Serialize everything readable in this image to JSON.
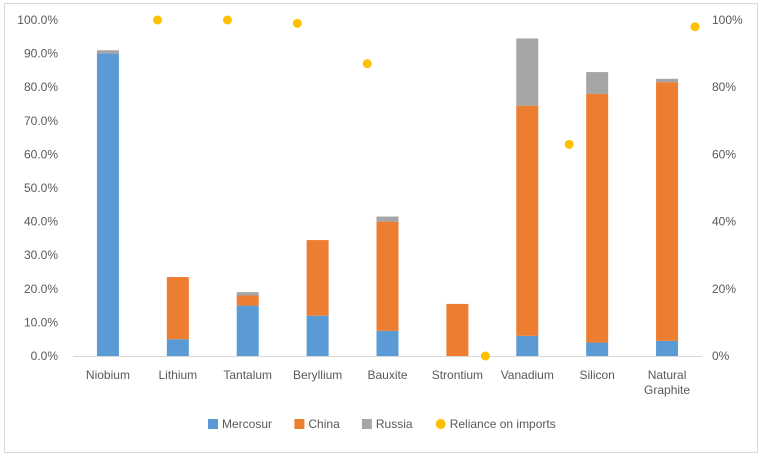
{
  "chart_data": {
    "type": "bar",
    "stacked": true,
    "categories": [
      "Niobium",
      "Lithium",
      "Tantalum",
      "Beryllium",
      "Bauxite",
      "Strontium",
      "Vanadium",
      "Silicon",
      "Natural Graphite"
    ],
    "series": [
      {
        "name": "Mercosur",
        "type": "bar",
        "axis": "left",
        "color": "#5b9bd5",
        "values": [
          0.9,
          0.05,
          0.15,
          0.12,
          0.075,
          0.0,
          0.06,
          0.04,
          0.045
        ]
      },
      {
        "name": "China",
        "type": "bar",
        "axis": "left",
        "color": "#ed7d31",
        "values": [
          0.0,
          0.185,
          0.03,
          0.225,
          0.325,
          0.155,
          0.685,
          0.74,
          0.77
        ]
      },
      {
        "name": "Russia",
        "type": "bar",
        "axis": "left",
        "color": "#a5a5a5",
        "values": [
          0.01,
          0.0,
          0.01,
          0.0,
          0.015,
          0.0,
          0.2,
          0.065,
          0.01
        ]
      },
      {
        "name": "Reliance on imports",
        "type": "scatter",
        "axis": "right",
        "color": "#ffc000",
        "values": [
          1.0,
          1.0,
          0.99,
          0.87,
          null,
          0.0,
          null,
          0.63,
          0.98
        ],
        "positions": [
          0.71,
          0.71,
          0.71,
          0.71,
          0.4,
          0.4,
          0.4,
          -0.4,
          0.4
        ]
      }
    ],
    "y_left": {
      "min": 0,
      "max": 1.0,
      "step": 0.1,
      "tick_labels": [
        "0.0%",
        "10.0%",
        "20.0%",
        "30.0%",
        "40.0%",
        "50.0%",
        "60.0%",
        "70.0%",
        "80.0%",
        "90.0%",
        "100.0%"
      ]
    },
    "y_right": {
      "min": 0,
      "max": 1.0,
      "step": 0.2,
      "tick_labels": [
        "0%",
        "20%",
        "40%",
        "60%",
        "80%",
        "100%"
      ]
    },
    "grid": false,
    "legend": "bottom",
    "legend_entries": [
      {
        "name": "Mercosur",
        "marker": "square",
        "color": "#5b9bd5"
      },
      {
        "name": "China",
        "marker": "square",
        "color": "#ed7d31"
      },
      {
        "name": "Russia",
        "marker": "square",
        "color": "#a5a5a5"
      },
      {
        "name": "Reliance on imports",
        "marker": "circle",
        "color": "#ffc000"
      }
    ],
    "title": "",
    "xlabel": "",
    "ylabel": ""
  }
}
